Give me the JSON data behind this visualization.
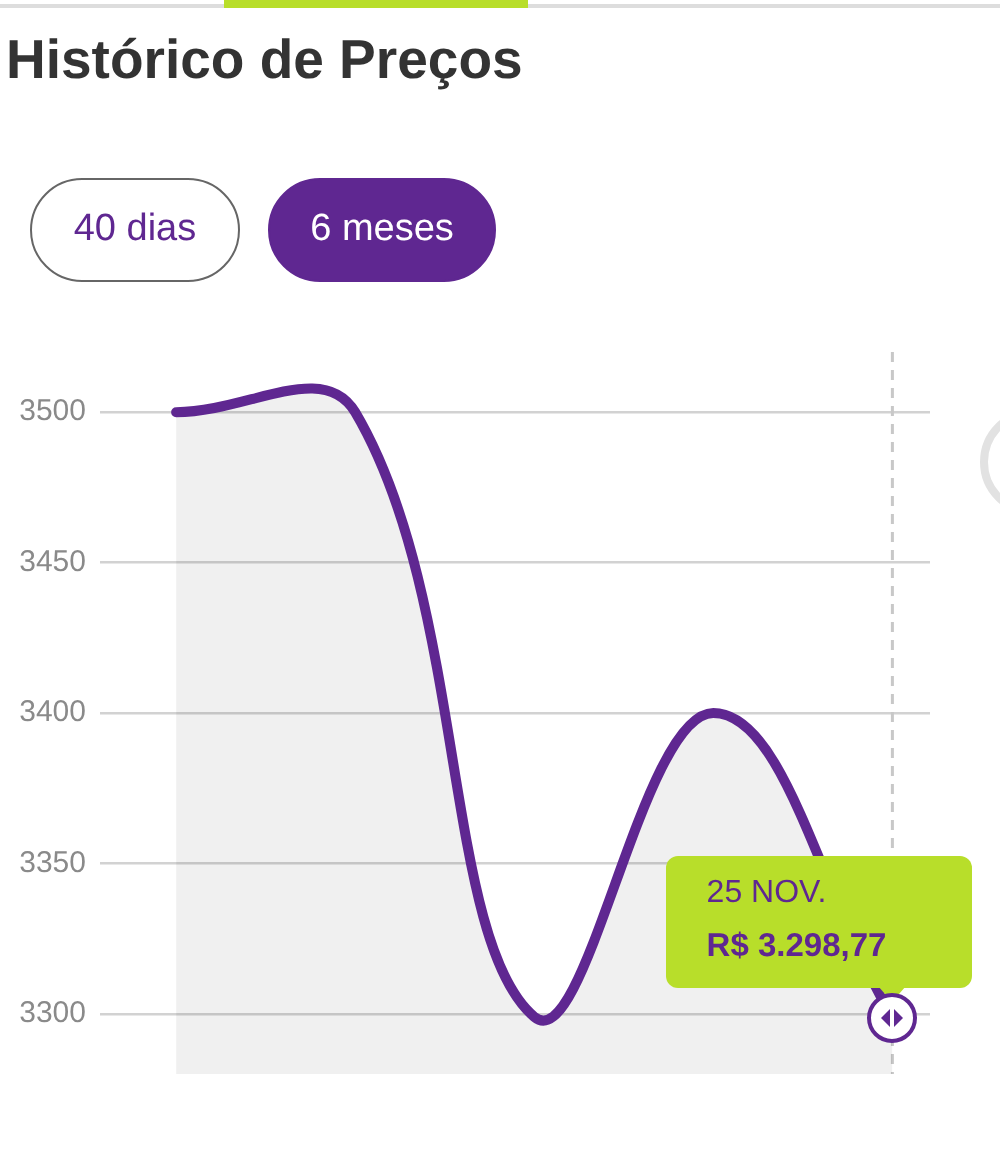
{
  "chart_data": {
    "type": "area",
    "title": "Histórico de Preços",
    "categories": [
      null,
      null,
      null,
      null,
      null
    ],
    "series": [
      {
        "color": "#5f2791",
        "values": [
          3500,
          3500,
          3299,
          3400,
          3298.77
        ],
        "value_labels": [
          null,
          null,
          null,
          null,
          "R$ 3.298,77"
        ]
      }
    ],
    "ylim": [
      3280,
      3520
    ],
    "yticks": [
      3300,
      3350,
      3400,
      3450,
      3500
    ],
    "grid": "y",
    "annotations": [
      "40 dias",
      "6 meses",
      "25 NOV."
    ]
  }
}
